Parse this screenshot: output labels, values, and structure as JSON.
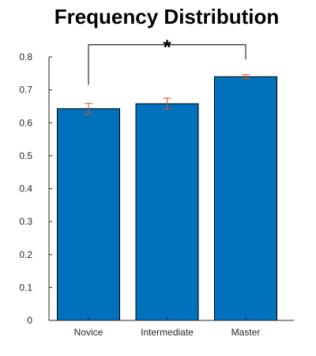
{
  "chart_data": {
    "type": "bar",
    "title": "Frequency Distribution",
    "xlabel": "",
    "ylabel": "",
    "categories": [
      "Novice",
      "Intermediate",
      "Master"
    ],
    "values": [
      0.643,
      0.658,
      0.74
    ],
    "error_bars": [
      0.016,
      0.017,
      0.006
    ],
    "ylim": [
      0,
      0.8
    ],
    "yticks": [
      0,
      0.1,
      0.2,
      0.3,
      0.4,
      0.5,
      0.6,
      0.7,
      0.8
    ],
    "ytick_labels": [
      "0",
      "0.1",
      "0.2",
      "0.3",
      "0.4",
      "0.5",
      "0.6",
      "0.7",
      "0.8"
    ],
    "significance": {
      "from_category": "Novice",
      "to_category": "Master",
      "label": "*",
      "bracket_top_value": 0.837,
      "left_leg_bottom_value": 0.715,
      "right_leg_bottom_value": 0.793
    },
    "colors": {
      "bar_fill": "#0072BD",
      "bar_edge": "#000000",
      "error_bar": "#D95319",
      "axis": "#262626"
    }
  }
}
